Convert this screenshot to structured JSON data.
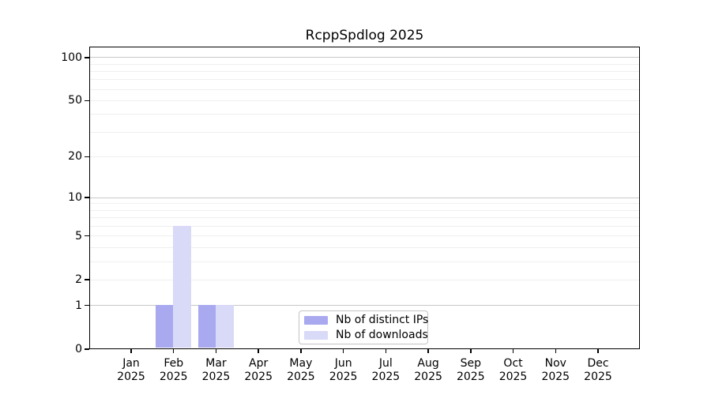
{
  "chart_data": {
    "type": "bar",
    "title": "RcppSpdlog 2025",
    "x_tick_months": [
      "Jan",
      "Feb",
      "Mar",
      "Apr",
      "May",
      "Jun",
      "Jul",
      "Aug",
      "Sep",
      "Oct",
      "Nov",
      "Dec"
    ],
    "x_tick_year": "2025",
    "categories": [
      "Jan 2025",
      "Feb 2025",
      "Mar 2025",
      "Apr 2025",
      "May 2025",
      "Jun 2025",
      "Jul 2025",
      "Aug 2025",
      "Sep 2025",
      "Oct 2025",
      "Nov 2025",
      "Dec 2025"
    ],
    "series": [
      {
        "name": "Nb of distinct IPs",
        "color": "#a9a9f0",
        "values": [
          0,
          1,
          1,
          0,
          0,
          0,
          0,
          0,
          0,
          0,
          0,
          0
        ]
      },
      {
        "name": "Nb of downloads",
        "color": "#d9d9f8",
        "values": [
          0,
          6,
          1,
          0,
          0,
          0,
          0,
          0,
          0,
          0,
          0,
          0
        ]
      }
    ],
    "y_axis": {
      "scale": "log1p",
      "tick_values": [
        0,
        1,
        2,
        5,
        10,
        20,
        50,
        100
      ],
      "tick_labels": [
        "0",
        "1",
        "2",
        "5",
        "10",
        "20",
        "50",
        "100"
      ],
      "major_gridlines": [
        1,
        10,
        100
      ],
      "minor_gridlines": [
        2,
        3,
        4,
        5,
        6,
        7,
        8,
        9,
        20,
        30,
        40,
        50,
        60,
        70,
        80,
        90
      ],
      "ylim": [
        0,
        119
      ]
    },
    "xlabel": "",
    "ylabel": "",
    "grid": true,
    "legend_position": "inside-bottom-center",
    "colors": {
      "axis": "#000000",
      "major_grid": "#c8c8c8",
      "minor_grid": "#efefef",
      "legend_border": "#c4c4c4",
      "background": "#ffffff"
    }
  }
}
